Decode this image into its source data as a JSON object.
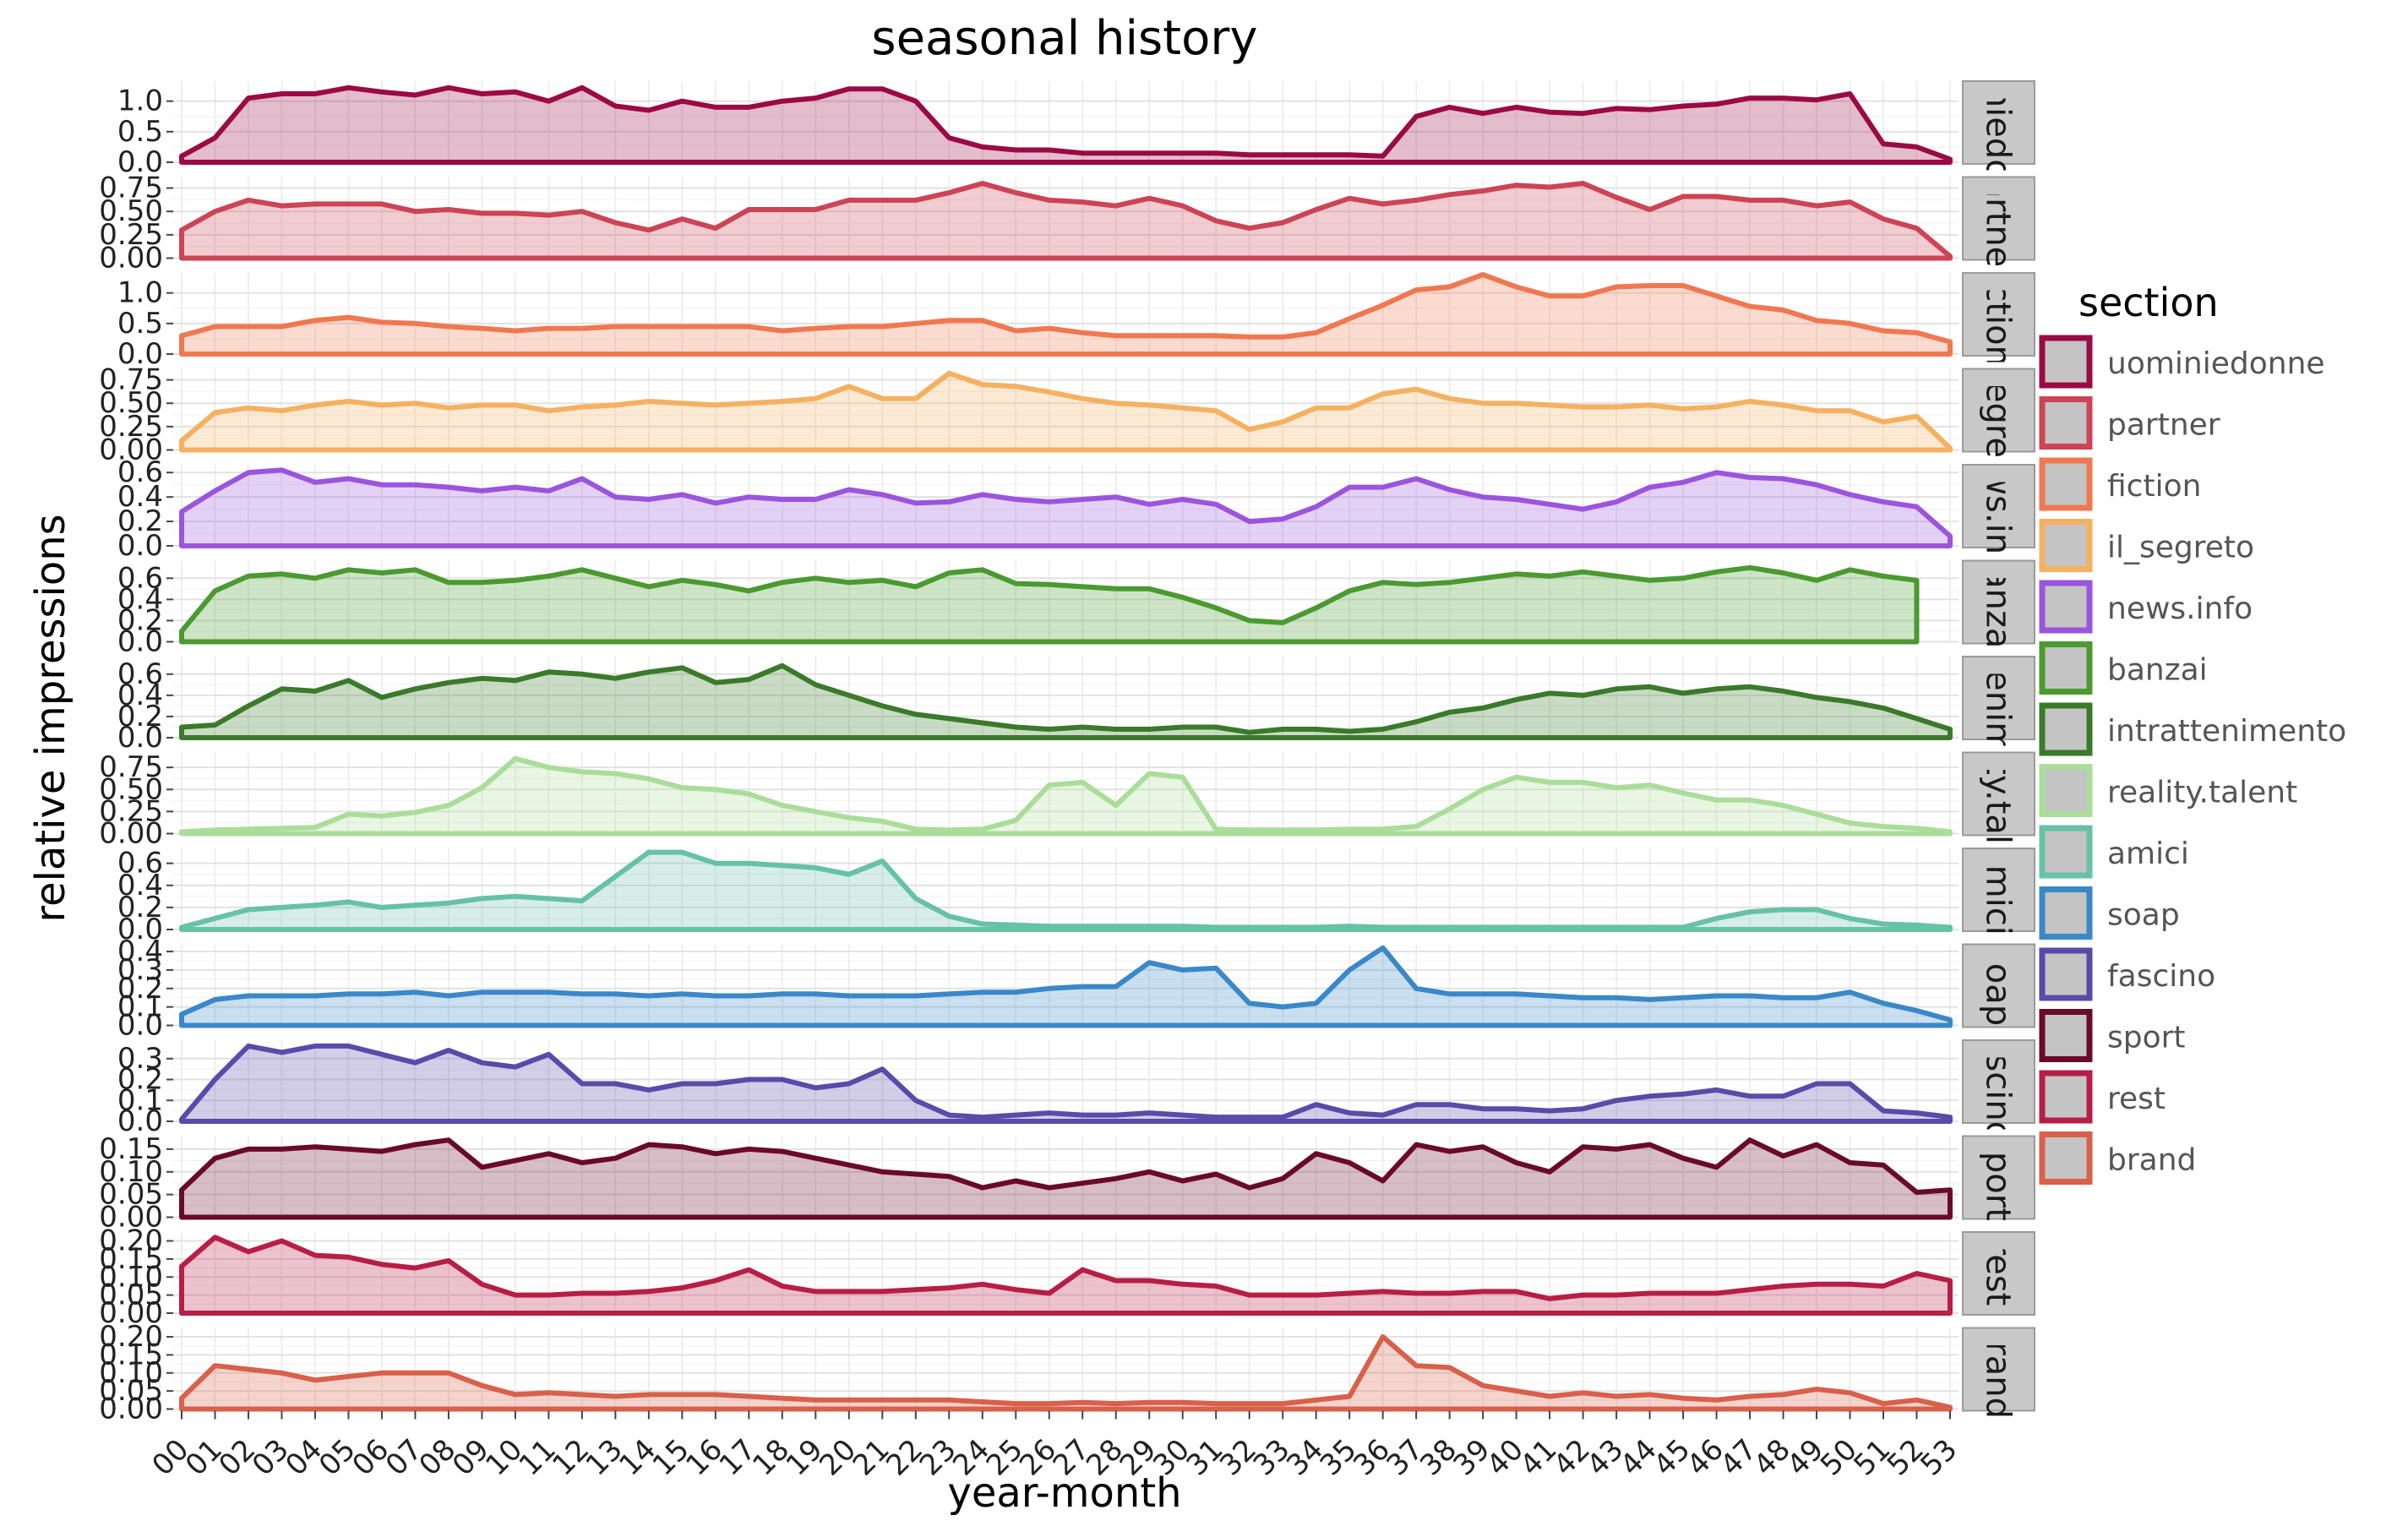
{
  "chart_data": {
    "type": "area",
    "title": "seasonal history",
    "xlabel": "year-month",
    "ylabel": "relative impressions",
    "x": [
      "00",
      "01",
      "02",
      "03",
      "04",
      "05",
      "06",
      "07",
      "08",
      "09",
      "10",
      "11",
      "12",
      "13",
      "14",
      "15",
      "16",
      "17",
      "18",
      "19",
      "20",
      "21",
      "22",
      "23",
      "24",
      "25",
      "26",
      "27",
      "28",
      "29",
      "30",
      "31",
      "32",
      "33",
      "34",
      "35",
      "36",
      "37",
      "38",
      "39",
      "40",
      "41",
      "42",
      "43",
      "44",
      "45",
      "46",
      "47",
      "48",
      "49",
      "50",
      "51",
      "52",
      "53"
    ],
    "grid": true,
    "legend": {
      "title": "section",
      "position": "right"
    },
    "series": [
      {
        "name": "uominiedonne",
        "strip": "uominiedonne",
        "color": "#9b0a45",
        "ylim": [
          0,
          1.3
        ],
        "ticks": [
          "0.0",
          "0.5",
          "1.0"
        ],
        "tick_values": [
          0,
          0.5,
          1.0
        ],
        "values": [
          0.1,
          0.4,
          1.05,
          1.12,
          1.12,
          1.22,
          1.15,
          1.1,
          1.22,
          1.12,
          1.15,
          1.0,
          1.22,
          0.92,
          0.85,
          1.0,
          0.9,
          0.9,
          1.0,
          1.05,
          1.2,
          1.2,
          1.0,
          0.4,
          0.25,
          0.2,
          0.2,
          0.15,
          0.15,
          0.15,
          0.15,
          0.15,
          0.12,
          0.12,
          0.12,
          0.12,
          0.1,
          0.75,
          0.9,
          0.8,
          0.9,
          0.82,
          0.8,
          0.88,
          0.86,
          0.92,
          0.95,
          1.05,
          1.05,
          1.02,
          1.12,
          0.3,
          0.25,
          0.05
        ]
      },
      {
        "name": "partner",
        "strip": "partner",
        "color": "#cc4455",
        "ylim": [
          0,
          0.85
        ],
        "ticks": [
          "0.00",
          "0.25",
          "0.50",
          "0.75"
        ],
        "tick_values": [
          0,
          0.25,
          0.5,
          0.75
        ],
        "values": [
          0.3,
          0.5,
          0.62,
          0.56,
          0.58,
          0.58,
          0.58,
          0.5,
          0.52,
          0.48,
          0.48,
          0.46,
          0.5,
          0.38,
          0.3,
          0.42,
          0.32,
          0.52,
          0.52,
          0.52,
          0.62,
          0.62,
          0.62,
          0.7,
          0.8,
          0.7,
          0.62,
          0.6,
          0.56,
          0.64,
          0.56,
          0.4,
          0.32,
          0.38,
          0.52,
          0.64,
          0.58,
          0.62,
          0.68,
          0.72,
          0.78,
          0.76,
          0.8,
          0.65,
          0.52,
          0.66,
          0.66,
          0.62,
          0.62,
          0.56,
          0.6,
          0.42,
          0.32,
          0.02
        ]
      },
      {
        "name": "fiction",
        "strip": "fiction",
        "color": "#f07850",
        "ylim": [
          0,
          1.3
        ],
        "ticks": [
          "0.0",
          "0.5",
          "1.0"
        ],
        "tick_values": [
          0,
          0.5,
          1.0
        ],
        "values": [
          0.3,
          0.45,
          0.45,
          0.45,
          0.55,
          0.6,
          0.52,
          0.5,
          0.45,
          0.42,
          0.38,
          0.42,
          0.42,
          0.45,
          0.45,
          0.45,
          0.45,
          0.45,
          0.38,
          0.42,
          0.45,
          0.45,
          0.5,
          0.55,
          0.55,
          0.38,
          0.42,
          0.35,
          0.3,
          0.3,
          0.3,
          0.3,
          0.28,
          0.28,
          0.35,
          0.58,
          0.8,
          1.05,
          1.1,
          1.3,
          1.1,
          0.95,
          0.95,
          1.1,
          1.12,
          1.12,
          0.95,
          0.78,
          0.72,
          0.55,
          0.5,
          0.38,
          0.35,
          0.2
        ]
      },
      {
        "name": "il_segreto",
        "strip": "il_segreto",
        "color": "#f5b060",
        "ylim": [
          0,
          0.85
        ],
        "ticks": [
          "0.00",
          "0.25",
          "0.50",
          "0.75"
        ],
        "tick_values": [
          0,
          0.25,
          0.5,
          0.75
        ],
        "values": [
          0.1,
          0.4,
          0.45,
          0.42,
          0.48,
          0.52,
          0.48,
          0.5,
          0.45,
          0.48,
          0.48,
          0.42,
          0.46,
          0.48,
          0.52,
          0.5,
          0.48,
          0.5,
          0.52,
          0.55,
          0.68,
          0.55,
          0.55,
          0.82,
          0.7,
          0.68,
          0.62,
          0.55,
          0.5,
          0.48,
          0.45,
          0.42,
          0.22,
          0.3,
          0.45,
          0.45,
          0.6,
          0.65,
          0.55,
          0.5,
          0.5,
          0.48,
          0.46,
          0.46,
          0.48,
          0.44,
          0.46,
          0.52,
          0.48,
          0.42,
          0.42,
          0.3,
          0.36,
          0.02
        ]
      },
      {
        "name": "news.info",
        "strip": "news.info",
        "color": "#9b55dd",
        "ylim": [
          0,
          0.65
        ],
        "ticks": [
          "0.0",
          "0.2",
          "0.4",
          "0.6"
        ],
        "tick_values": [
          0,
          0.2,
          0.4,
          0.6
        ],
        "values": [
          0.28,
          0.45,
          0.6,
          0.62,
          0.52,
          0.55,
          0.5,
          0.5,
          0.48,
          0.45,
          0.48,
          0.45,
          0.55,
          0.4,
          0.38,
          0.42,
          0.35,
          0.4,
          0.38,
          0.38,
          0.46,
          0.42,
          0.35,
          0.36,
          0.42,
          0.38,
          0.36,
          0.38,
          0.4,
          0.34,
          0.38,
          0.34,
          0.2,
          0.22,
          0.32,
          0.48,
          0.48,
          0.55,
          0.46,
          0.4,
          0.38,
          0.34,
          0.3,
          0.36,
          0.48,
          0.52,
          0.6,
          0.56,
          0.55,
          0.5,
          0.42,
          0.36,
          0.32,
          0.08
        ]
      },
      {
        "name": "banzai",
        "strip": "banzai",
        "color": "#4a9a30",
        "ylim": [
          0,
          0.75
        ],
        "ticks": [
          "0.0",
          "0.2",
          "0.4",
          "0.6"
        ],
        "tick_values": [
          0,
          0.2,
          0.4,
          0.6
        ],
        "values": [
          0.1,
          0.48,
          0.62,
          0.64,
          0.6,
          0.68,
          0.65,
          0.68,
          0.56,
          0.56,
          0.58,
          0.62,
          0.68,
          0.6,
          0.52,
          0.58,
          0.54,
          0.48,
          0.56,
          0.6,
          0.56,
          0.58,
          0.52,
          0.65,
          0.68,
          0.55,
          0.54,
          0.52,
          0.5,
          0.5,
          0.42,
          0.32,
          0.2,
          0.18,
          0.32,
          0.48,
          0.56,
          0.54,
          0.56,
          0.6,
          0.64,
          0.62,
          0.66,
          0.62,
          0.58,
          0.6,
          0.66,
          0.7,
          0.65,
          0.58,
          0.68,
          0.62,
          0.58,
          null
        ]
      },
      {
        "name": "intrattenimento",
        "strip": "intrattenimento",
        "color": "#3a7a2a",
        "ylim": [
          0,
          0.75
        ],
        "ticks": [
          "0.0",
          "0.2",
          "0.4",
          "0.6"
        ],
        "tick_values": [
          0,
          0.2,
          0.4,
          0.6
        ],
        "values": [
          0.1,
          0.12,
          0.3,
          0.46,
          0.44,
          0.54,
          0.38,
          0.46,
          0.52,
          0.56,
          0.54,
          0.62,
          0.6,
          0.56,
          0.62,
          0.66,
          0.52,
          0.55,
          0.68,
          0.5,
          0.4,
          0.3,
          0.22,
          0.18,
          0.14,
          0.1,
          0.08,
          0.1,
          0.08,
          0.08,
          0.1,
          0.1,
          0.05,
          0.08,
          0.08,
          0.06,
          0.08,
          0.15,
          0.24,
          0.28,
          0.36,
          0.42,
          0.4,
          0.46,
          0.48,
          0.42,
          0.46,
          0.48,
          0.44,
          0.38,
          0.34,
          0.28,
          0.18,
          0.08
        ]
      },
      {
        "name": "reality.talent",
        "strip": "reality.talent",
        "color": "#aadd99",
        "ylim": [
          0,
          0.9
        ],
        "ticks": [
          "0.00",
          "0.25",
          "0.50",
          "0.75"
        ],
        "tick_values": [
          0,
          0.25,
          0.5,
          0.75
        ],
        "values": [
          0.02,
          0.04,
          0.05,
          0.06,
          0.07,
          0.22,
          0.2,
          0.24,
          0.32,
          0.52,
          0.85,
          0.75,
          0.7,
          0.68,
          0.62,
          0.52,
          0.5,
          0.45,
          0.32,
          0.25,
          0.18,
          0.14,
          0.05,
          0.04,
          0.05,
          0.15,
          0.55,
          0.58,
          0.32,
          0.68,
          0.64,
          0.05,
          0.04,
          0.04,
          0.04,
          0.05,
          0.05,
          0.08,
          0.28,
          0.5,
          0.64,
          0.58,
          0.58,
          0.52,
          0.55,
          0.46,
          0.38,
          0.38,
          0.32,
          0.22,
          0.12,
          0.08,
          0.06,
          0.02
        ]
      },
      {
        "name": "amici",
        "strip": "amici",
        "color": "#66c2a5",
        "ylim": [
          0,
          0.72
        ],
        "ticks": [
          "0.0",
          "0.2",
          "0.4",
          "0.6"
        ],
        "tick_values": [
          0,
          0.2,
          0.4,
          0.6
        ],
        "values": [
          0.02,
          0.1,
          0.18,
          0.2,
          0.22,
          0.25,
          0.2,
          0.22,
          0.24,
          0.28,
          0.3,
          0.28,
          0.26,
          0.48,
          0.7,
          0.7,
          0.6,
          0.6,
          0.58,
          0.56,
          0.5,
          0.62,
          0.28,
          0.12,
          0.05,
          0.04,
          0.03,
          0.03,
          0.03,
          0.03,
          0.03,
          0.02,
          0.02,
          0.02,
          0.02,
          0.03,
          0.02,
          0.02,
          0.02,
          0.02,
          0.02,
          0.02,
          0.02,
          0.02,
          0.02,
          0.02,
          0.1,
          0.16,
          0.18,
          0.18,
          0.1,
          0.05,
          0.04,
          0.02
        ]
      },
      {
        "name": "soap",
        "strip": "soap",
        "color": "#3a88c8",
        "ylim": [
          0,
          0.43
        ],
        "ticks": [
          "0.0",
          "0.1",
          "0.2",
          "0.3",
          "0.4"
        ],
        "tick_values": [
          0,
          0.1,
          0.2,
          0.3,
          0.4
        ],
        "values": [
          0.06,
          0.14,
          0.16,
          0.16,
          0.16,
          0.17,
          0.17,
          0.18,
          0.16,
          0.18,
          0.18,
          0.18,
          0.17,
          0.17,
          0.16,
          0.17,
          0.16,
          0.16,
          0.17,
          0.17,
          0.16,
          0.16,
          0.16,
          0.17,
          0.18,
          0.18,
          0.2,
          0.21,
          0.21,
          0.34,
          0.3,
          0.31,
          0.12,
          0.1,
          0.12,
          0.3,
          0.42,
          0.2,
          0.17,
          0.17,
          0.17,
          0.16,
          0.15,
          0.15,
          0.14,
          0.15,
          0.16,
          0.16,
          0.15,
          0.15,
          0.18,
          0.12,
          0.08,
          0.03
        ]
      },
      {
        "name": "fascino",
        "strip": "fascino",
        "color": "#5a4aaa",
        "ylim": [
          0,
          0.38
        ],
        "ticks": [
          "0.0",
          "0.1",
          "0.2",
          "0.3"
        ],
        "tick_values": [
          0,
          0.1,
          0.2,
          0.3
        ],
        "values": [
          0.01,
          0.2,
          0.36,
          0.33,
          0.36,
          0.36,
          0.32,
          0.28,
          0.34,
          0.28,
          0.26,
          0.32,
          0.18,
          0.18,
          0.15,
          0.18,
          0.18,
          0.2,
          0.2,
          0.16,
          0.18,
          0.25,
          0.1,
          0.03,
          0.02,
          0.03,
          0.04,
          0.03,
          0.03,
          0.04,
          0.03,
          0.02,
          0.02,
          0.02,
          0.08,
          0.04,
          0.03,
          0.08,
          0.08,
          0.06,
          0.06,
          0.05,
          0.06,
          0.1,
          0.12,
          0.13,
          0.15,
          0.12,
          0.12,
          0.18,
          0.18,
          0.05,
          0.04,
          0.02
        ]
      },
      {
        "name": "sport",
        "strip": "sport",
        "color": "#6a0a2a",
        "ylim": [
          0,
          0.175
        ],
        "ticks": [
          "0.00",
          "0.05",
          "0.10",
          "0.15"
        ],
        "tick_values": [
          0,
          0.05,
          0.1,
          0.15
        ],
        "values": [
          0.06,
          0.13,
          0.15,
          0.15,
          0.155,
          0.15,
          0.145,
          0.16,
          0.17,
          0.11,
          0.125,
          0.14,
          0.12,
          0.13,
          0.16,
          0.155,
          0.14,
          0.15,
          0.145,
          0.13,
          0.115,
          0.1,
          0.095,
          0.09,
          0.065,
          0.08,
          0.065,
          0.075,
          0.085,
          0.1,
          0.08,
          0.095,
          0.065,
          0.085,
          0.14,
          0.12,
          0.08,
          0.16,
          0.145,
          0.155,
          0.12,
          0.1,
          0.155,
          0.15,
          0.16,
          0.13,
          0.11,
          0.17,
          0.135,
          0.16,
          0.12,
          0.115,
          0.055,
          0.06
        ]
      },
      {
        "name": "rest",
        "strip": "rest",
        "color": "#b81e45",
        "ylim": [
          0,
          0.22
        ],
        "ticks": [
          "0.00",
          "0.05",
          "0.10",
          "0.15",
          "0.20"
        ],
        "tick_values": [
          0,
          0.05,
          0.1,
          0.15,
          0.2
        ],
        "values": [
          0.13,
          0.21,
          0.17,
          0.2,
          0.16,
          0.155,
          0.135,
          0.125,
          0.145,
          0.08,
          0.05,
          0.05,
          0.055,
          0.055,
          0.06,
          0.07,
          0.09,
          0.12,
          0.075,
          0.06,
          0.06,
          0.06,
          0.065,
          0.07,
          0.08,
          0.065,
          0.055,
          0.12,
          0.09,
          0.09,
          0.08,
          0.075,
          0.05,
          0.05,
          0.05,
          0.055,
          0.06,
          0.055,
          0.055,
          0.06,
          0.06,
          0.04,
          0.05,
          0.05,
          0.055,
          0.055,
          0.055,
          0.065,
          0.075,
          0.08,
          0.08,
          0.075,
          0.11,
          0.09
        ]
      },
      {
        "name": "brand",
        "strip": "brand",
        "color": "#d9604a",
        "ylim": [
          0,
          0.22
        ],
        "ticks": [
          "0.00",
          "0.05",
          "0.10",
          "0.15",
          "0.20"
        ],
        "tick_values": [
          0,
          0.05,
          0.1,
          0.15,
          0.2
        ],
        "values": [
          0.03,
          0.12,
          0.11,
          0.1,
          0.08,
          0.09,
          0.1,
          0.1,
          0.1,
          0.065,
          0.04,
          0.045,
          0.04,
          0.035,
          0.04,
          0.04,
          0.04,
          0.035,
          0.03,
          0.025,
          0.025,
          0.025,
          0.025,
          0.025,
          0.02,
          0.015,
          0.015,
          0.018,
          0.015,
          0.018,
          0.018,
          0.015,
          0.015,
          0.015,
          0.025,
          0.035,
          0.2,
          0.12,
          0.115,
          0.065,
          0.05,
          0.035,
          0.045,
          0.035,
          0.04,
          0.03,
          0.025,
          0.035,
          0.04,
          0.055,
          0.045,
          0.015,
          0.025,
          0.005
        ]
      }
    ]
  }
}
